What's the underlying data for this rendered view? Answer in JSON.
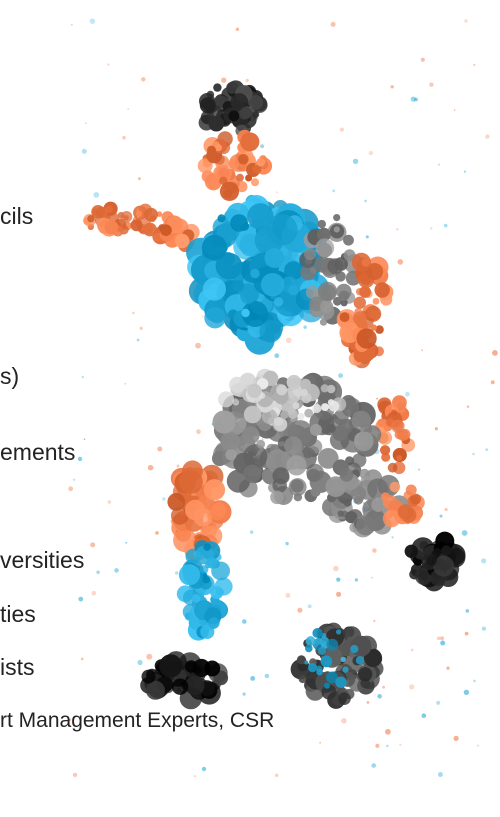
{
  "text_fragments": [
    "cils",
    "s)",
    "ements",
    "versities",
    "ties",
    "ists",
    "rt Management Experts, CSR"
  ],
  "artwork": {
    "icon": "soccer-player-dot-mosaic",
    "colors": {
      "skin": "#ee7a48",
      "shirt": "#1fa6d6",
      "shorts": "#7d7d7d",
      "hair": "#2e2e2e",
      "shoes": "#1d1d1d",
      "ball_light": "#2aa6d1",
      "ball_dark": "#4a4a4a"
    }
  }
}
